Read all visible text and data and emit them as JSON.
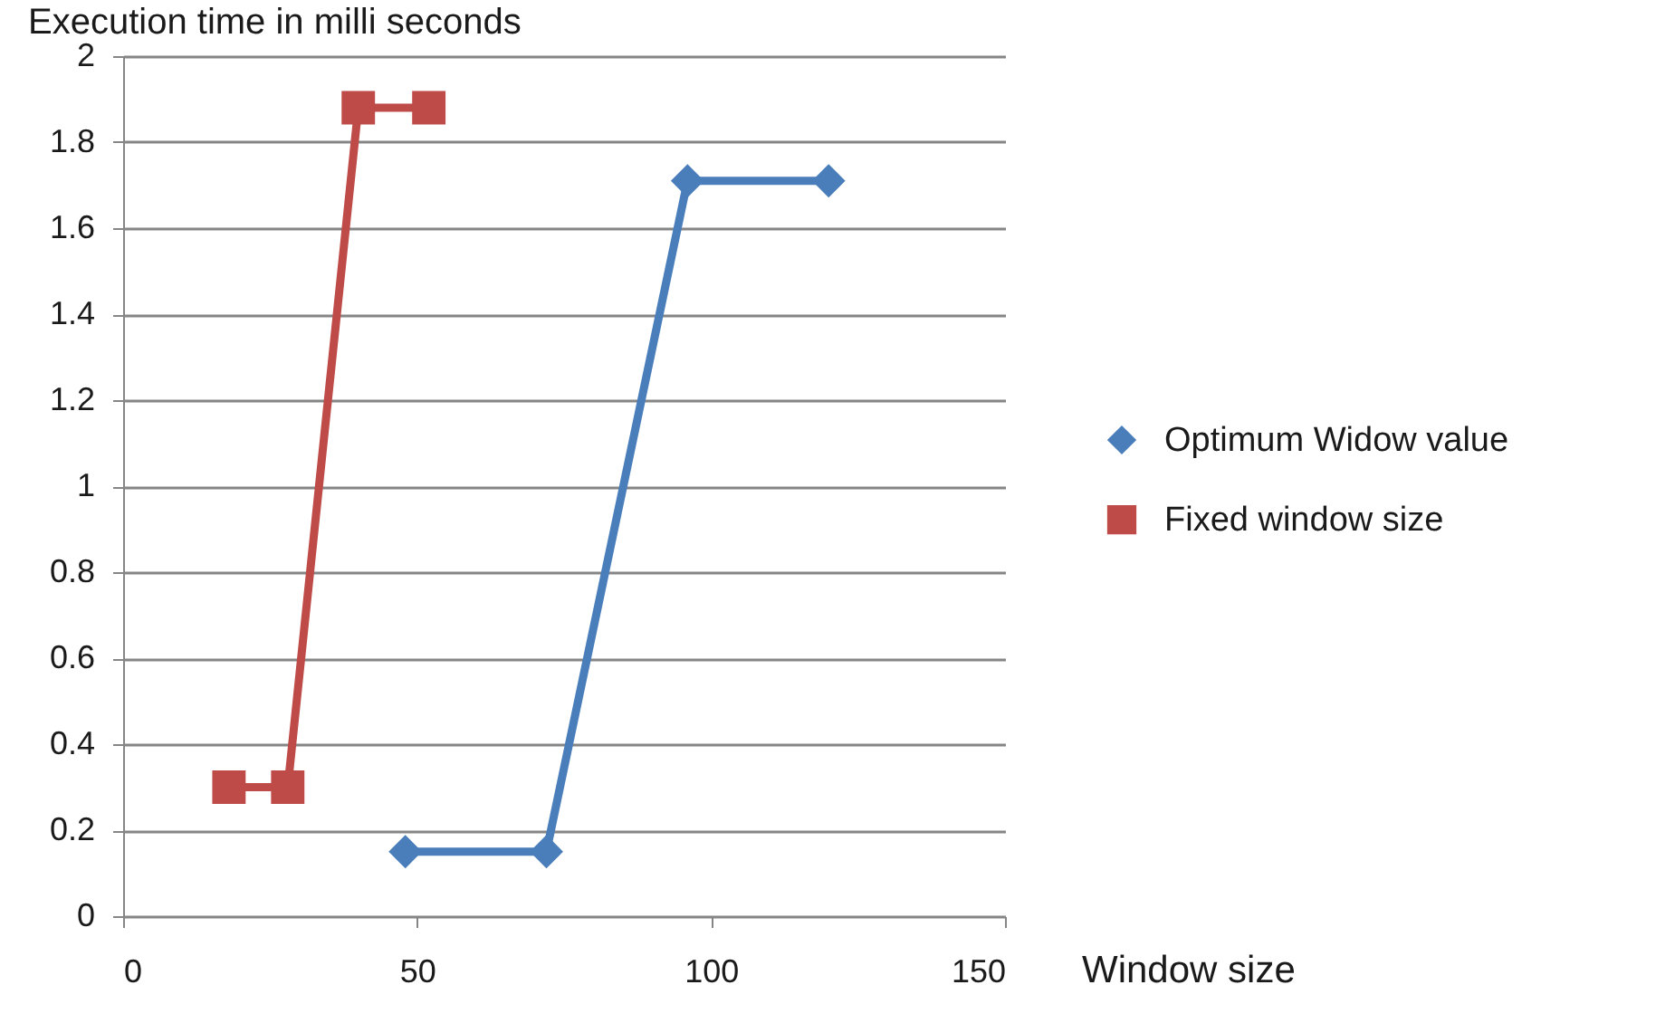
{
  "chart_data": {
    "type": "line",
    "xlabel": "Window size",
    "ylabel": "Execution time in milli seconds",
    "xlim": [
      0,
      150
    ],
    "xticks": [
      0,
      50,
      100,
      150
    ],
    "ylim": [
      0,
      2
    ],
    "yticks": [
      0,
      0.2,
      0.4,
      0.6,
      0.8,
      1,
      1.2,
      1.4,
      1.6,
      1.8,
      2
    ],
    "grid": "y",
    "legend": "right",
    "line_style": "solid",
    "series": [
      {
        "name": "Optimum Widow value",
        "color": "#4a7ebb",
        "marker": "diamond",
        "x": [
          48,
          72,
          96,
          120
        ],
        "values": [
          0.15,
          0.15,
          1.71,
          1.71
        ]
      },
      {
        "name": "Fixed window size",
        "color": "#be4b48",
        "marker": "square",
        "x": [
          18,
          28,
          40,
          52
        ],
        "values": [
          0.3,
          0.3,
          1.88,
          1.88
        ]
      }
    ]
  }
}
